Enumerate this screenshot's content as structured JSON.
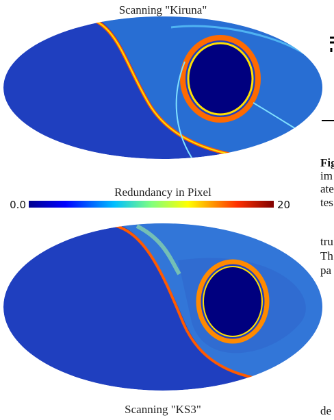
{
  "figure": {
    "top_map": {
      "caption": "Scanning \"Kiruna\""
    },
    "colorbar": {
      "title": "Redundancy in Pixel",
      "min_label": "0.0",
      "max_label": "20"
    },
    "bottom_map": {
      "caption": "Scanning \"KS3\""
    }
  },
  "side_text": {
    "fragments": [
      "Fig",
      "im",
      "ate",
      "tes",
      "tru",
      "Th",
      "pa",
      "de"
    ]
  }
}
